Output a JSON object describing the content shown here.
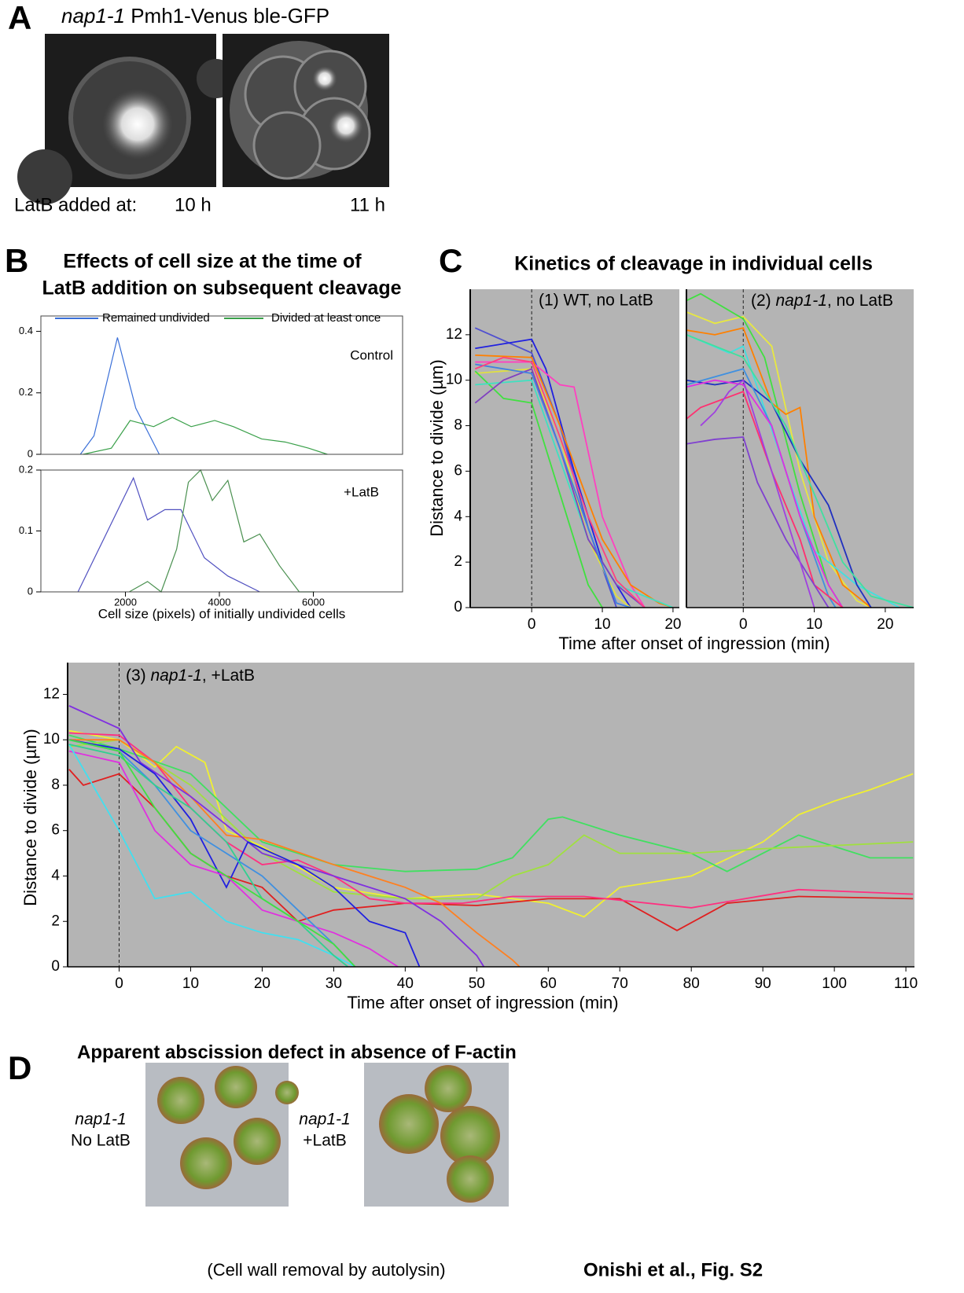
{
  "panel_labels": [
    "A",
    "B",
    "C",
    "D"
  ],
  "panel_a": {
    "title": [
      "nap1-1",
      " Pmh1-Venus ble-GFP"
    ],
    "caption": "LatB added at:",
    "times": [
      "10 h",
      "11 h"
    ]
  },
  "panel_b": {
    "title": [
      "Effects of cell size at the time of",
      "LatB addition on subsequent cleavage"
    ]
  },
  "panel_c": {
    "title": "Kinetics of cleavage in individual cells"
  },
  "panel_d": {
    "title": "Apparent abscission defect in absence of F-actin",
    "left_label": [
      "nap1-1",
      "No LatB"
    ],
    "right_label": [
      "nap1-1",
      "+LatB"
    ],
    "caption": "(Cell wall removal by autolysin)"
  },
  "credit": "Onishi et al., Fig. S2",
  "chart_data": [
    {
      "type": "line",
      "annotation": "Control",
      "xlim": [
        200,
        7900
      ],
      "ylim": [
        0,
        0.45
      ],
      "yticks": [
        0,
        0.2,
        0.4
      ],
      "series": [
        {
          "name": "Remained undivided",
          "color": "#3a6fd8",
          "x": [
            1040,
            1330,
            1830,
            2220,
            2720
          ],
          "values": [
            0,
            0.06,
            0.38,
            0.15,
            0
          ]
        },
        {
          "name": "Divided at least once",
          "color": "#3aa04a",
          "x": [
            1100,
            1700,
            2100,
            2600,
            3000,
            3400,
            3900,
            4300,
            4900,
            5400,
            5900,
            6300
          ],
          "values": [
            0,
            0.02,
            0.11,
            0.09,
            0.12,
            0.09,
            0.11,
            0.09,
            0.05,
            0.04,
            0.02,
            0
          ]
        }
      ]
    },
    {
      "type": "line",
      "annotation": "+LatB",
      "xlabel": "Cell size (pixels) of initially undivided cells",
      "xlim": [
        200,
        7900
      ],
      "ylim": [
        0,
        0.2
      ],
      "yticks": [
        0,
        0.1,
        0.2
      ],
      "xticks": [
        2000,
        4000,
        6000
      ],
      "series": [
        {
          "color": "#5050c0",
          "x": [
            990,
            2170,
            2470,
            2840,
            3180,
            3680,
            4180,
            4860
          ],
          "values": [
            0,
            0.187,
            0.118,
            0.135,
            0.135,
            0.056,
            0.026,
            0
          ]
        },
        {
          "color": "#4a9050",
          "x": [
            2080,
            2470,
            2760,
            3090,
            3340,
            3600,
            3850,
            4180,
            4520,
            4860,
            5280,
            5700,
            6030
          ],
          "values": [
            0,
            0.017,
            0,
            0.07,
            0.18,
            0.2,
            0.15,
            0.183,
            0.082,
            0.095,
            0.043,
            0,
            0
          ]
        }
      ]
    },
    {
      "type": "line",
      "annotation": "(1) WT, no LatB",
      "ylabel": "Distance to divide (µm)",
      "xlabel": "Time after onset of ingression (min)",
      "onset_line": true,
      "xlim": [
        -8.7,
        20.9
      ],
      "ylim": [
        0,
        14
      ],
      "xticks": [
        0,
        10,
        20
      ],
      "yticks": [
        0,
        2,
        4,
        6,
        8,
        10,
        12
      ],
      "series": [
        {
          "color": "#5050d0",
          "x": [
            -8,
            0,
            4,
            8,
            12
          ],
          "values": [
            12.3,
            11.2,
            8,
            3.5,
            0
          ]
        },
        {
          "color": "#2020e0",
          "x": [
            -8,
            0,
            2,
            6,
            10,
            14
          ],
          "values": [
            11.4,
            11.8,
            10.5,
            6,
            2,
            0
          ]
        },
        {
          "color": "#ff40c0",
          "x": [
            -8,
            0,
            4,
            6,
            10,
            14,
            16
          ],
          "values": [
            10.8,
            10.8,
            9.8,
            9.7,
            4,
            1,
            0
          ]
        },
        {
          "color": "#ff8000",
          "x": [
            -8,
            0,
            4,
            10,
            14,
            18,
            20
          ],
          "values": [
            11.1,
            11,
            8,
            3,
            1,
            0.2,
            0
          ]
        },
        {
          "color": "#e0e040",
          "x": [
            -8,
            0,
            4,
            8,
            12,
            14
          ],
          "values": [
            10.3,
            10.5,
            7.5,
            3,
            0.5,
            0
          ]
        },
        {
          "color": "#40e040",
          "x": [
            -8,
            -4,
            0,
            4,
            8,
            10
          ],
          "values": [
            10.4,
            9.2,
            9,
            5,
            1,
            0
          ]
        },
        {
          "color": "#40e0c0",
          "x": [
            -8,
            0,
            4,
            8,
            12,
            16,
            20
          ],
          "values": [
            9.8,
            10,
            6.5,
            3,
            1,
            0.5,
            0
          ]
        },
        {
          "color": "#8040c0",
          "x": [
            -8,
            -4,
            0,
            4,
            8,
            12,
            16
          ],
          "values": [
            9,
            10,
            10.5,
            7,
            3,
            1,
            0
          ]
        },
        {
          "color": "#4080e0",
          "x": [
            -8,
            0,
            4,
            8,
            12,
            14
          ],
          "values": [
            10.7,
            10.3,
            7,
            3.5,
            0.2,
            0
          ]
        },
        {
          "color": "#ff4080",
          "x": [
            -8,
            -4,
            0,
            4,
            8,
            12,
            16
          ],
          "values": [
            10.5,
            11,
            10.8,
            7.5,
            4,
            1.2,
            0
          ]
        }
      ]
    },
    {
      "type": "line",
      "annotation": [
        "(2) ",
        "nap1-1",
        ", no LatB"
      ],
      "onset_line": true,
      "xlim": [
        -8,
        24
      ],
      "ylim": [
        0,
        14
      ],
      "xticks": [
        0,
        10,
        20
      ],
      "series": [
        {
          "color": "#e8e840",
          "x": [
            -8,
            -4,
            0,
            4,
            8,
            12,
            16,
            18
          ],
          "values": [
            13,
            12.5,
            12.8,
            11.5,
            6,
            2,
            0.3,
            0
          ]
        },
        {
          "color": "#40e040",
          "x": [
            -8,
            -6,
            0,
            3,
            8,
            12,
            14
          ],
          "values": [
            13.5,
            13.8,
            12.7,
            11,
            5,
            1,
            0
          ]
        },
        {
          "color": "#ff8000",
          "x": [
            -8,
            -4,
            0,
            4,
            6,
            8,
            10,
            14,
            18
          ],
          "values": [
            12.2,
            12,
            12.3,
            9,
            8.5,
            8.8,
            4,
            1,
            0
          ]
        },
        {
          "color": "#40e0e0",
          "x": [
            -8,
            -2,
            0,
            6,
            10,
            16,
            22
          ],
          "values": [
            12,
            11.2,
            11.5,
            6,
            2.5,
            1,
            0
          ]
        },
        {
          "color": "#2030c0",
          "x": [
            -8,
            -4,
            0,
            4,
            8,
            12,
            16,
            18
          ],
          "values": [
            10,
            9.8,
            10,
            9,
            6.5,
            4.5,
            1,
            0
          ]
        },
        {
          "color": "#4090e0",
          "x": [
            -8,
            0,
            4,
            8,
            12,
            13
          ],
          "values": [
            9.8,
            10.5,
            8,
            4,
            0.5,
            0
          ]
        },
        {
          "color": "#e030e0",
          "x": [
            -8,
            -4,
            0,
            4,
            6,
            8,
            12,
            14
          ],
          "values": [
            9.7,
            10,
            9.8,
            8,
            6,
            4,
            1,
            0
          ]
        },
        {
          "color": "#ff3070",
          "x": [
            -8,
            -6,
            0,
            4,
            8,
            10,
            14
          ],
          "values": [
            8.3,
            8.8,
            9.5,
            6,
            3,
            1,
            0
          ]
        },
        {
          "color": "#8040d0",
          "x": [
            -8,
            -4,
            0,
            2,
            6,
            10,
            12
          ],
          "values": [
            7.2,
            7.4,
            7.5,
            5.5,
            3,
            1,
            0
          ]
        },
        {
          "color": "#a040e0",
          "x": [
            -6,
            -4,
            -2,
            0,
            4,
            8,
            10
          ],
          "values": [
            8,
            8.6,
            9.5,
            10,
            6,
            2,
            0
          ]
        },
        {
          "color": "#40e0a0",
          "x": [
            -8,
            0,
            6,
            10,
            14,
            18,
            24
          ],
          "values": [
            12,
            11,
            8,
            5,
            2,
            0.5,
            0
          ]
        }
      ]
    },
    {
      "type": "line",
      "annotation": [
        "(3) ",
        "nap1-1",
        ", +LatB"
      ],
      "ylabel": "Distance to divide (µm)",
      "xlabel": "Time after onset of ingression (min)",
      "onset_line": true,
      "xlim": [
        -7.2,
        111.2
      ],
      "ylim": [
        0,
        13.4
      ],
      "xticks": [
        0,
        10,
        20,
        30,
        40,
        50,
        60,
        70,
        80,
        90,
        100,
        110
      ],
      "yticks": [
        0,
        2,
        4,
        6,
        8,
        10,
        12
      ],
      "series": [
        {
          "color": "#f0f030",
          "x": [
            -7,
            0,
            5,
            8,
            12,
            15,
            20,
            30,
            40,
            50,
            60,
            65,
            70,
            80,
            90,
            95,
            100,
            105,
            111
          ],
          "values": [
            10.4,
            10,
            8.8,
            9.7,
            9,
            6,
            5.3,
            3.5,
            3,
            3.2,
            2.8,
            2.2,
            3.5,
            4,
            5.5,
            6.7,
            7.3,
            7.8,
            8.5
          ]
        },
        {
          "color": "#40e060",
          "x": [
            -7,
            0,
            10,
            20,
            30,
            40,
            50,
            55,
            60,
            62,
            70,
            80,
            85,
            95,
            105,
            111
          ],
          "values": [
            10.2,
            9.6,
            8.5,
            5.5,
            4.5,
            4.2,
            4.3,
            4.8,
            6.5,
            6.6,
            5.8,
            5,
            4.2,
            5.8,
            4.8,
            4.8
          ]
        },
        {
          "color": "#a0e040",
          "x": [
            -7,
            0,
            10,
            20,
            30,
            40,
            50,
            55,
            60,
            65,
            70,
            80,
            90,
            111
          ],
          "values": [
            9.7,
            10,
            8,
            5,
            3.3,
            3,
            3,
            4,
            4.5,
            5.8,
            5,
            5,
            5.2,
            5.5
          ]
        },
        {
          "color": "#e02020",
          "x": [
            -7,
            -5,
            0,
            5,
            10,
            15,
            20,
            25,
            30,
            40,
            50,
            60,
            70,
            78,
            85,
            95,
            111
          ],
          "values": [
            8.7,
            8,
            8.5,
            7,
            5,
            4,
            3.5,
            2,
            2.5,
            2.8,
            2.7,
            3,
            3,
            1.6,
            2.8,
            3.1,
            3
          ]
        },
        {
          "color": "#ff3080",
          "x": [
            -7,
            0,
            5,
            10,
            15,
            20,
            25,
            30,
            35,
            40,
            48,
            55,
            65,
            80,
            95,
            111
          ],
          "values": [
            10.3,
            10.2,
            9,
            7,
            5.5,
            4.5,
            4.7,
            4,
            3,
            2.8,
            2.8,
            3.1,
            3.1,
            2.6,
            3.4,
            3.2
          ]
        },
        {
          "color": "#ff8020",
          "x": [
            -7,
            0,
            5,
            10,
            15,
            20,
            30,
            35,
            40,
            45,
            50,
            55,
            56
          ],
          "values": [
            10,
            10,
            9,
            7.5,
            5.8,
            5.6,
            4.5,
            4,
            3.5,
            2.8,
            1.5,
            0.3,
            0
          ]
        },
        {
          "color": "#8030e0",
          "x": [
            -7,
            0,
            3,
            10,
            20,
            30,
            40,
            45,
            50,
            51
          ],
          "values": [
            11.5,
            10.5,
            9,
            7.5,
            5,
            4,
            3,
            2,
            0.5,
            0
          ]
        },
        {
          "color": "#2020e0",
          "x": [
            -7,
            0,
            5,
            10,
            15,
            18,
            25,
            30,
            35,
            40,
            42
          ],
          "values": [
            10,
            9.6,
            8.5,
            6.5,
            3.5,
            5.5,
            4.5,
            3.5,
            2,
            1.5,
            0
          ]
        },
        {
          "color": "#e030e0",
          "x": [
            -7,
            0,
            5,
            10,
            15,
            20,
            30,
            35,
            39
          ],
          "values": [
            9.5,
            9,
            6,
            4.5,
            4,
            2.5,
            1.5,
            0.8,
            0
          ]
        },
        {
          "color": "#40e0f0",
          "x": [
            -7,
            0,
            5,
            10,
            15,
            20,
            25,
            30,
            33
          ],
          "values": [
            9.8,
            6,
            3,
            3.3,
            2,
            1.5,
            1.2,
            0.5,
            0
          ]
        },
        {
          "color": "#4090e0",
          "x": [
            -7,
            0,
            5,
            10,
            15,
            20,
            25,
            30,
            33
          ],
          "values": [
            10,
            9.5,
            8,
            6,
            5,
            4,
            2.5,
            1,
            0
          ]
        },
        {
          "color": "#30d090",
          "x": [
            -7,
            0,
            5,
            10,
            15,
            20,
            25,
            30,
            32
          ],
          "values": [
            9.8,
            9.3,
            8,
            7,
            5.5,
            3,
            2,
            0.5,
            0
          ]
        },
        {
          "color": "#40e040",
          "x": [
            -7,
            0,
            5,
            10,
            20,
            30,
            33
          ],
          "values": [
            10,
            9.5,
            7,
            5,
            3,
            1,
            0
          ]
        }
      ]
    }
  ]
}
